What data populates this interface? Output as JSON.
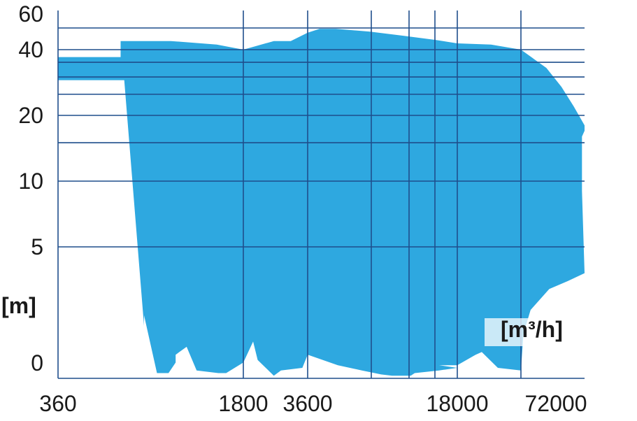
{
  "chart_data": {
    "type": "area",
    "title": "",
    "xlabel": "[m³/h]",
    "ylabel": "[m]",
    "x_scale": "log",
    "x_tick_labels": [
      "360",
      "1800",
      "3600",
      "18000",
      "72000"
    ],
    "y_tick_labels": [
      "0",
      "5",
      "10",
      "20",
      "40",
      "60"
    ],
    "fill_color": "#2ea8e0",
    "grid_color": "#1f4e8c",
    "grid": true,
    "legend": "none",
    "series": [
      {
        "values_note_x": "flow",
        "polygon_flow": [
          360,
          360,
          620,
          620,
          960,
          1430,
          1800,
          1800,
          2500,
          3000,
          3600,
          3600,
          4100,
          4900,
          7100,
          10000,
          14500,
          18000,
          18000,
          26000,
          36000,
          47500,
          56000,
          64000,
          72000,
          72000,
          70000,
          70000,
          72000,
          60000,
          49000,
          40000,
          37000,
          36000,
          28000,
          23500,
          22000,
          18000,
          15000,
          18000,
          15000,
          11500,
          11000,
          9000,
          8000,
          6500,
          5000,
          3600,
          3400,
          2700,
          2500,
          2100,
          2000,
          1800,
          1550,
          1450,
          1200,
          1100,
          1000,
          1000,
          940,
          850,
          760,
          760,
          640
        ],
        "polygon_head": [
          29,
          37,
          37,
          47,
          47,
          44,
          40,
          40,
          47,
          47,
          55,
          55,
          59,
          59,
          56,
          52,
          48,
          45,
          45,
          44,
          40,
          33,
          27,
          22,
          18,
          17,
          16,
          9,
          4,
          3.7,
          3.4,
          2.6,
          1.7,
          0.3,
          0.4,
          1.0,
          0.9,
          0.5,
          0.5,
          0.4,
          0.3,
          0.2,
          0.1,
          0.1,
          0.15,
          0.3,
          0.5,
          0.9,
          0.4,
          0.3,
          0.1,
          0.7,
          1.4,
          0.6,
          0.2,
          0.2,
          0.3,
          1.2,
          0.9,
          0.6,
          0.2,
          0.2,
          2.4,
          2.0,
          29
        ],
        "name": ""
      }
    ]
  }
}
